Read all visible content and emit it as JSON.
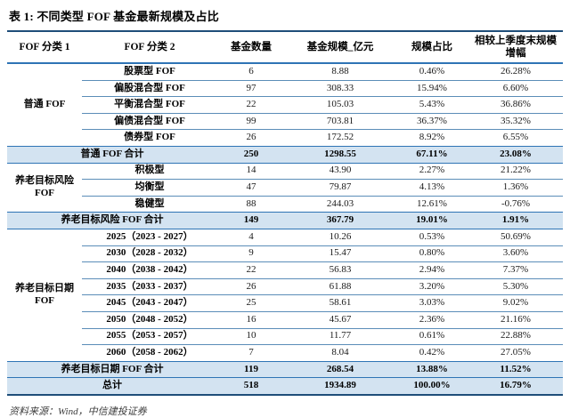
{
  "title": "表 1: 不同类型 FOF 基金最新规模及占比",
  "table": {
    "columns": [
      "FOF 分类 1",
      "FOF 分类 2",
      "基金数量",
      "基金规模_亿元",
      "规模占比",
      "相较上季度末规模增幅"
    ],
    "groups": [
      {
        "name": "普通 FOF",
        "rows": [
          {
            "label": "股票型 FOF",
            "count": "6",
            "scale": "8.88",
            "share": "0.46%",
            "change": "26.28%"
          },
          {
            "label": "偏股混合型 FOF",
            "count": "97",
            "scale": "308.33",
            "share": "15.94%",
            "change": "6.60%"
          },
          {
            "label": "平衡混合型 FOF",
            "count": "22",
            "scale": "105.03",
            "share": "5.43%",
            "change": "36.86%"
          },
          {
            "label": "偏债混合型 FOF",
            "count": "99",
            "scale": "703.81",
            "share": "36.37%",
            "change": "35.32%"
          },
          {
            "label": "债券型 FOF",
            "count": "26",
            "scale": "172.52",
            "share": "8.92%",
            "change": "6.55%"
          }
        ],
        "summary": {
          "label": "普通 FOF 合计",
          "count": "250",
          "scale": "1298.55",
          "share": "67.11%",
          "change": "23.08%"
        }
      },
      {
        "name": "养老目标风险 FOF",
        "rows": [
          {
            "label": "积极型",
            "count": "14",
            "scale": "43.90",
            "share": "2.27%",
            "change": "21.22%"
          },
          {
            "label": "均衡型",
            "count": "47",
            "scale": "79.87",
            "share": "4.13%",
            "change": "1.36%"
          },
          {
            "label": "稳健型",
            "count": "88",
            "scale": "244.03",
            "share": "12.61%",
            "change": "-0.76%"
          }
        ],
        "summary": {
          "label": "养老目标风险 FOF 合计",
          "count": "149",
          "scale": "367.79",
          "share": "19.01%",
          "change": "1.91%"
        }
      },
      {
        "name": "养老目标日期 FOF",
        "rows": [
          {
            "label": "2025（2023 - 2027）",
            "count": "4",
            "scale": "10.26",
            "share": "0.53%",
            "change": "50.69%"
          },
          {
            "label": "2030（2028 - 2032）",
            "count": "9",
            "scale": "15.47",
            "share": "0.80%",
            "change": "3.60%"
          },
          {
            "label": "2040（2038 - 2042）",
            "count": "22",
            "scale": "56.83",
            "share": "2.94%",
            "change": "7.37%"
          },
          {
            "label": "2035（2033 - 2037）",
            "count": "26",
            "scale": "61.88",
            "share": "3.20%",
            "change": "5.30%"
          },
          {
            "label": "2045（2043 - 2047）",
            "count": "25",
            "scale": "58.61",
            "share": "3.03%",
            "change": "9.02%"
          },
          {
            "label": "2050（2048 - 2052）",
            "count": "16",
            "scale": "45.67",
            "share": "2.36%",
            "change": "21.16%"
          },
          {
            "label": "2055（2053 - 2057）",
            "count": "10",
            "scale": "11.77",
            "share": "0.61%",
            "change": "22.88%"
          },
          {
            "label": "2060（2058 - 2062）",
            "count": "7",
            "scale": "8.04",
            "share": "0.42%",
            "change": "27.05%"
          }
        ],
        "summary": {
          "label": "养老目标日期 FOF 合计",
          "count": "119",
          "scale": "268.54",
          "share": "13.88%",
          "change": "11.52%"
        }
      }
    ],
    "total": {
      "label": "总计",
      "count": "518",
      "scale": "1934.89",
      "share": "100.00%",
      "change": "16.79%"
    }
  },
  "source": "资料来源：Wind，中信建投证券",
  "colors": {
    "rule_dark": "#1f4e79",
    "rule_blue": "#2e74b5",
    "row_separator": "#5b8db8",
    "summary_bg": "#d3e3f1"
  }
}
